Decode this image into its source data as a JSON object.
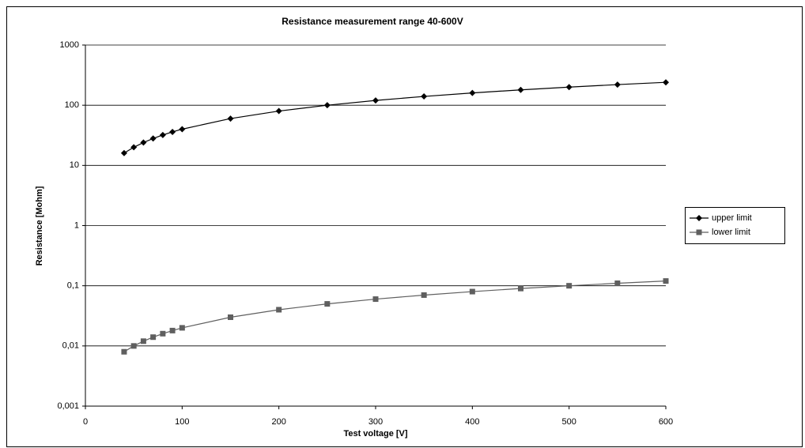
{
  "chart_data": {
    "type": "line",
    "title": "Resistance measurement range 40-600V",
    "x_label": "Test voltage [V]",
    "y_label": "Resistance [Mohm]",
    "x": [
      40,
      50,
      60,
      70,
      80,
      90,
      100,
      150,
      200,
      250,
      300,
      350,
      400,
      450,
      500,
      550,
      600
    ],
    "series": [
      {
        "name": "upper limit",
        "color": "#000000",
        "marker": "diamond",
        "values": [
          16,
          20,
          24,
          28,
          32,
          36,
          40,
          60,
          80,
          100,
          120,
          140,
          160,
          180,
          200,
          220,
          240
        ]
      },
      {
        "name": "lower limit",
        "color": "#5f5f5f",
        "marker": "square",
        "values": [
          0.008,
          0.01,
          0.012,
          0.014,
          0.016,
          0.018,
          0.02,
          0.03,
          0.04,
          0.05,
          0.06,
          0.07,
          0.08,
          0.09,
          0.1,
          0.11,
          0.12
        ]
      }
    ],
    "xlim": [
      0,
      600
    ],
    "xticks": [
      0,
      100,
      200,
      300,
      400,
      500,
      600
    ],
    "ylim": [
      0.001,
      1000
    ],
    "log_y": true,
    "yticks": [
      {
        "value": 0.001,
        "label": "0,001"
      },
      {
        "value": 0.01,
        "label": "0,01"
      },
      {
        "value": 0.1,
        "label": "0,1"
      },
      1,
      10,
      100,
      1000
    ],
    "grid": true,
    "legend": "right"
  }
}
